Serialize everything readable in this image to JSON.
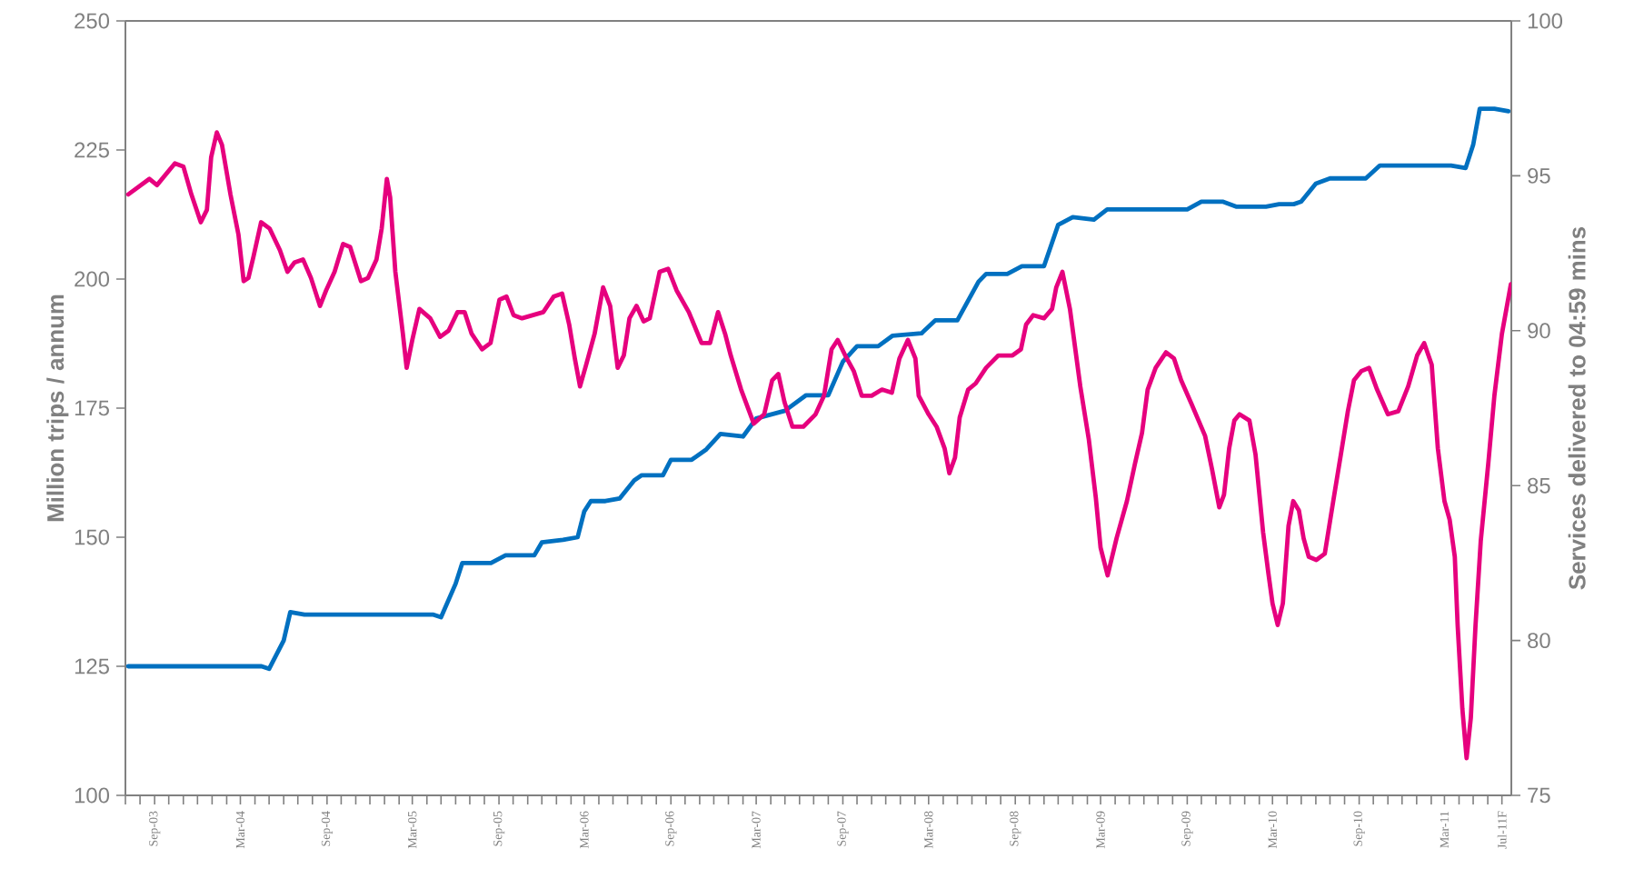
{
  "chart_data": {
    "type": "line",
    "ylabel": "Million trips / annum",
    "y2label": "Services delivered to 04:59 mins",
    "xlim": [
      "2003-07",
      "2011-07-21"
    ],
    "ylim": [
      100,
      250
    ],
    "yticks": [
      100,
      125,
      150,
      175,
      200,
      225,
      250
    ],
    "y2lim": [
      75,
      100
    ],
    "y2ticks": [
      75,
      80,
      85,
      90,
      95,
      100
    ],
    "xticks": [
      {
        "value": "2003-07",
        "label": null
      },
      {
        "value": "2003-08",
        "label": null
      },
      {
        "value": "2003-09",
        "label": "Sep-03"
      },
      {
        "value": "2003-10",
        "label": null
      },
      {
        "value": "2003-11",
        "label": null
      },
      {
        "value": "2003-12",
        "label": null
      },
      {
        "value": "2004-01",
        "label": null
      },
      {
        "value": "2004-02",
        "label": null
      },
      {
        "value": "2004-03",
        "label": "Mar-04"
      },
      {
        "value": "2004-04",
        "label": null
      },
      {
        "value": "2004-05",
        "label": null
      },
      {
        "value": "2004-06",
        "label": null
      },
      {
        "value": "2004-07",
        "label": null
      },
      {
        "value": "2004-08",
        "label": null
      },
      {
        "value": "2004-09",
        "label": "Sep-04"
      },
      {
        "value": "2004-10",
        "label": null
      },
      {
        "value": "2004-11",
        "label": null
      },
      {
        "value": "2004-12",
        "label": null
      },
      {
        "value": "2005-01",
        "label": null
      },
      {
        "value": "2005-02",
        "label": null
      },
      {
        "value": "2005-03",
        "label": "Mar-05"
      },
      {
        "value": "2005-04",
        "label": null
      },
      {
        "value": "2005-05",
        "label": null
      },
      {
        "value": "2005-06",
        "label": null
      },
      {
        "value": "2005-07",
        "label": null
      },
      {
        "value": "2005-08",
        "label": null
      },
      {
        "value": "2005-09",
        "label": "Sep-05"
      },
      {
        "value": "2005-10",
        "label": null
      },
      {
        "value": "2005-11",
        "label": null
      },
      {
        "value": "2005-12",
        "label": null
      },
      {
        "value": "2006-01",
        "label": null
      },
      {
        "value": "2006-02",
        "label": null
      },
      {
        "value": "2006-03",
        "label": "Mar-06"
      },
      {
        "value": "2006-04",
        "label": null
      },
      {
        "value": "2006-05",
        "label": null
      },
      {
        "value": "2006-06",
        "label": null
      },
      {
        "value": "2006-07",
        "label": null
      },
      {
        "value": "2006-08",
        "label": null
      },
      {
        "value": "2006-09",
        "label": "Sep-06"
      },
      {
        "value": "2006-10",
        "label": null
      },
      {
        "value": "2006-11",
        "label": null
      },
      {
        "value": "2006-12",
        "label": null
      },
      {
        "value": "2007-01",
        "label": null
      },
      {
        "value": "2007-02",
        "label": null
      },
      {
        "value": "2007-03",
        "label": "Mar-07"
      },
      {
        "value": "2007-04",
        "label": null
      },
      {
        "value": "2007-05",
        "label": null
      },
      {
        "value": "2007-06",
        "label": null
      },
      {
        "value": "2007-07",
        "label": null
      },
      {
        "value": "2007-08",
        "label": null
      },
      {
        "value": "2007-09",
        "label": "Sep-07"
      },
      {
        "value": "2007-10",
        "label": null
      },
      {
        "value": "2007-11",
        "label": null
      },
      {
        "value": "2007-12",
        "label": null
      },
      {
        "value": "2008-01",
        "label": null
      },
      {
        "value": "2008-02",
        "label": null
      },
      {
        "value": "2008-03",
        "label": "Mar-08"
      },
      {
        "value": "2008-04",
        "label": null
      },
      {
        "value": "2008-05",
        "label": null
      },
      {
        "value": "2008-06",
        "label": null
      },
      {
        "value": "2008-07",
        "label": null
      },
      {
        "value": "2008-08",
        "label": null
      },
      {
        "value": "2008-09",
        "label": "Sep-08"
      },
      {
        "value": "2008-10",
        "label": null
      },
      {
        "value": "2008-11",
        "label": null
      },
      {
        "value": "2008-12",
        "label": null
      },
      {
        "value": "2009-01",
        "label": null
      },
      {
        "value": "2009-02",
        "label": null
      },
      {
        "value": "2009-03",
        "label": "Mar-09"
      },
      {
        "value": "2009-04",
        "label": null
      },
      {
        "value": "2009-05",
        "label": null
      },
      {
        "value": "2009-06",
        "label": null
      },
      {
        "value": "2009-07",
        "label": null
      },
      {
        "value": "2009-08",
        "label": null
      },
      {
        "value": "2009-09",
        "label": "Sep-09"
      },
      {
        "value": "2009-10",
        "label": null
      },
      {
        "value": "2009-11",
        "label": null
      },
      {
        "value": "2009-12",
        "label": null
      },
      {
        "value": "2010-01",
        "label": null
      },
      {
        "value": "2010-02",
        "label": null
      },
      {
        "value": "2010-03",
        "label": "Mar-10"
      },
      {
        "value": "2010-04",
        "label": null
      },
      {
        "value": "2010-05",
        "label": null
      },
      {
        "value": "2010-06",
        "label": null
      },
      {
        "value": "2010-07",
        "label": null
      },
      {
        "value": "2010-08",
        "label": null
      },
      {
        "value": "2010-09",
        "label": "Sep-10"
      },
      {
        "value": "2010-10",
        "label": null
      },
      {
        "value": "2010-11",
        "label": null
      },
      {
        "value": "2010-12",
        "label": null
      },
      {
        "value": "2011-01",
        "label": null
      },
      {
        "value": "2011-02",
        "label": null
      },
      {
        "value": "2011-03",
        "label": "Mar-11"
      },
      {
        "value": "2011-04",
        "label": null
      },
      {
        "value": "2011-05",
        "label": null
      },
      {
        "value": "2011-06",
        "label": null
      },
      {
        "value": "2011-07",
        "label": "Jul-11F"
      }
    ],
    "series": [
      {
        "color": "#0070c0",
        "axis": "y",
        "x": [
          "2003-07-07",
          "2004-04-15",
          "2004-05",
          "2004-06",
          "2004-06-15",
          "2004-07-15",
          "2005-04-15",
          "2005-05",
          "2005-06",
          "2005-06-15",
          "2005-08-15",
          "2005-09-15",
          "2005-11-15",
          "2005-12",
          "2006-01-15",
          "2006-02-15",
          "2006-03",
          "2006-03-15",
          "2006-04-15",
          "2006-05-15",
          "2006-06-15",
          "2006-07",
          "2006-08-15",
          "2006-09",
          "2006-10-15",
          "2006-11-15",
          "2006-12-15",
          "2007-02",
          "2007-03",
          "2007-05",
          "2007-06-15",
          "2007-08",
          "2007-09",
          "2007-10",
          "2007-11-15",
          "2007-12-15",
          "2008-02-15",
          "2008-03-15",
          "2008-05",
          "2008-06-15",
          "2008-07",
          "2008-08-15",
          "2008-09-15",
          "2008-11",
          "2008-12",
          "2009-01",
          "2009-02-15",
          "2009-03-15",
          "2009-09",
          "2009-10",
          "2009-11-15",
          "2009-12-15",
          "2010-02-15",
          "2010-03-15",
          "2010-04-15",
          "2010-05",
          "2010-06",
          "2010-07",
          "2010-09-15",
          "2010-10-15",
          "2011-03-15",
          "2011-04-15",
          "2011-05",
          "2011-05-15",
          "2011-06-15",
          "2011-07-15"
        ],
        "values": [
          125,
          125,
          124.5,
          130,
          135.5,
          135,
          135,
          134.5,
          141,
          145,
          145,
          146.5,
          146.5,
          149,
          149.5,
          150,
          155,
          157,
          157,
          157.5,
          161,
          162,
          162,
          165,
          165,
          167,
          170,
          169.5,
          173,
          174.5,
          177.5,
          177.5,
          184,
          187,
          187,
          189,
          189.5,
          192,
          192,
          199.5,
          201,
          201,
          202.5,
          202.5,
          210.5,
          212,
          211.5,
          213.5,
          213.5,
          215,
          215,
          214,
          214,
          214.5,
          214.5,
          215,
          218.5,
          219.5,
          219.5,
          222,
          222,
          221.5,
          226,
          233,
          233,
          232.5
        ]
      },
      {
        "color": "#e6007e",
        "axis": "y2",
        "x": [
          "2003-07-07",
          "2003-08-21",
          "2003-09-06",
          "2003-10-14",
          "2003-11-01",
          "2003-11-18",
          "2003-12-08",
          "2003-12-21",
          "2003-12-30",
          "2004-01-11",
          "2004-01-22",
          "2004-02-09",
          "2004-02-26",
          "2004-03-08",
          "2004-03-18",
          "2004-03-29",
          "2004-04-14",
          "2004-05-02",
          "2004-05-24",
          "2004-06-09",
          "2004-06-24",
          "2004-07-12",
          "2004-07-29",
          "2004-08-17",
          "2004-08-30",
          "2004-09-17",
          "2004-10-05",
          "2004-10-20",
          "2004-11-12",
          "2004-11-27",
          "2004-12-15",
          "2004-12-26",
          "2005-01-06",
          "2005-01-13",
          "2005-01-24",
          "2005-02-09",
          "2005-02-17",
          "2005-03-01",
          "2005-03-16",
          "2005-04-08",
          "2005-04-29",
          "2005-05-17",
          "2005-06-05",
          "2005-06-20",
          "2005-07-05",
          "2005-07-27",
          "2005-08-14",
          "2005-09-02",
          "2005-09-17",
          "2005-10-02",
          "2005-10-20",
          "2005-12-04",
          "2005-12-26",
          "2006-01-13",
          "2006-01-28",
          "2006-02-09",
          "2006-02-20",
          "2006-03-05",
          "2006-03-23",
          "2006-04-10",
          "2006-04-25",
          "2006-05-11",
          "2006-05-24",
          "2006-06-05",
          "2006-06-20",
          "2006-07-05",
          "2006-07-18",
          "2006-08-08",
          "2006-08-26",
          "2006-09-13",
          "2006-10-09",
          "2006-11-05",
          "2006-11-23",
          "2006-12-10",
          "2006-12-25",
          "2007-01-06",
          "2007-01-28",
          "2007-02-24",
          "2007-03-18",
          "2007-04-04",
          "2007-04-17",
          "2007-04-30",
          "2007-05-17",
          "2007-06-09",
          "2007-07-05",
          "2007-07-23",
          "2007-08-08",
          "2007-08-21",
          "2007-09-06",
          "2007-09-24",
          "2007-10-11",
          "2007-11-01",
          "2007-11-23",
          "2007-12-14",
          "2007-12-30",
          "2008-01-17",
          "2008-02-02",
          "2008-02-09",
          "2008-03-01",
          "2008-03-18",
          "2008-04-04",
          "2008-04-14",
          "2008-04-26",
          "2008-05-06",
          "2008-05-24",
          "2008-06-09",
          "2008-07-01",
          "2008-07-27",
          "2008-08-26",
          "2008-09-13",
          "2008-09-24",
          "2008-10-09",
          "2008-11-01",
          "2008-11-18",
          "2008-11-27",
          "2008-12-10",
          "2008-12-26",
          "2009-01-17",
          "2009-02-04",
          "2009-02-19",
          "2009-03-01",
          "2009-03-16",
          "2009-04-04",
          "2009-04-26",
          "2009-05-13",
          "2009-05-28",
          "2009-06-09",
          "2009-06-26",
          "2009-07-18",
          "2009-08-04",
          "2009-08-19",
          "2009-09-11",
          "2009-10-09",
          "2009-10-24",
          "2009-11-08",
          "2009-11-18",
          "2009-11-29",
          "2009-12-10",
          "2009-12-21",
          "2010-01-11",
          "2010-01-24",
          "2010-02-09",
          "2010-02-20",
          "2010-03-01",
          "2010-03-12",
          "2010-03-23",
          "2010-04-04",
          "2010-04-14",
          "2010-04-26",
          "2010-05-06",
          "2010-05-17",
          "2010-06-02",
          "2010-06-20",
          "2010-07-08",
          "2010-07-23",
          "2010-08-08",
          "2010-08-21",
          "2010-09-06",
          "2010-09-22",
          "2010-10-09",
          "2010-11-01",
          "2010-11-23",
          "2010-12-14",
          "2011-01-02",
          "2011-01-17",
          "2011-02-02",
          "2011-02-15",
          "2011-03-01",
          "2011-03-12",
          "2011-03-23",
          "2011-03-29",
          "2011-04-08",
          "2011-04-17",
          "2011-04-26",
          "2011-05-06",
          "2011-05-17",
          "2011-06-02",
          "2011-06-15",
          "2011-07-01",
          "2011-07-20"
        ],
        "values": [
          94.4,
          94.9,
          94.7,
          95.4,
          95.3,
          94.4,
          93.5,
          93.9,
          95.6,
          96.4,
          96.0,
          94.4,
          93.1,
          91.6,
          91.7,
          92.4,
          93.5,
          93.3,
          92.6,
          91.9,
          92.2,
          92.3,
          91.7,
          90.8,
          91.3,
          91.9,
          92.8,
          92.7,
          91.6,
          91.7,
          92.3,
          93.3,
          94.9,
          94.3,
          91.9,
          89.9,
          88.8,
          89.7,
          90.7,
          90.4,
          89.8,
          90.0,
          90.6,
          90.6,
          89.9,
          89.4,
          89.6,
          91.0,
          91.1,
          90.5,
          90.4,
          90.6,
          91.1,
          91.2,
          90.2,
          89.1,
          88.2,
          88.9,
          89.9,
          91.4,
          90.8,
          88.8,
          89.2,
          90.4,
          90.8,
          90.3,
          90.4,
          91.9,
          92.0,
          91.3,
          90.6,
          89.6,
          89.6,
          90.6,
          89.9,
          89.2,
          88.1,
          87.0,
          87.3,
          88.4,
          88.6,
          87.7,
          86.9,
          86.9,
          87.3,
          87.9,
          89.4,
          89.7,
          89.2,
          88.7,
          87.9,
          87.9,
          88.1,
          88.0,
          89.1,
          89.7,
          89.1,
          87.9,
          87.3,
          86.9,
          86.2,
          85.4,
          85.9,
          87.2,
          88.1,
          88.3,
          88.8,
          89.2,
          89.2,
          89.4,
          90.2,
          90.5,
          90.4,
          90.7,
          91.4,
          91.9,
          90.7,
          88.2,
          86.5,
          84.6,
          83.0,
          82.1,
          83.3,
          84.5,
          85.7,
          86.7,
          88.1,
          88.8,
          89.3,
          89.1,
          88.4,
          87.6,
          86.6,
          85.5,
          84.3,
          84.7,
          86.2,
          87.1,
          87.3,
          87.1,
          86.0,
          83.5,
          82.2,
          81.2,
          80.5,
          81.2,
          83.7,
          84.5,
          84.2,
          83.3,
          82.7,
          82.6,
          82.8,
          84.5,
          85.9,
          87.4,
          88.4,
          88.7,
          88.8,
          88.1,
          87.3,
          87.4,
          88.2,
          89.2,
          89.6,
          88.9,
          86.2,
          84.5,
          83.9,
          82.7,
          80.5,
          77.8,
          76.2,
          77.5,
          80.5,
          83.2,
          85.7,
          87.9,
          89.9,
          91.5
        ]
      }
    ]
  }
}
